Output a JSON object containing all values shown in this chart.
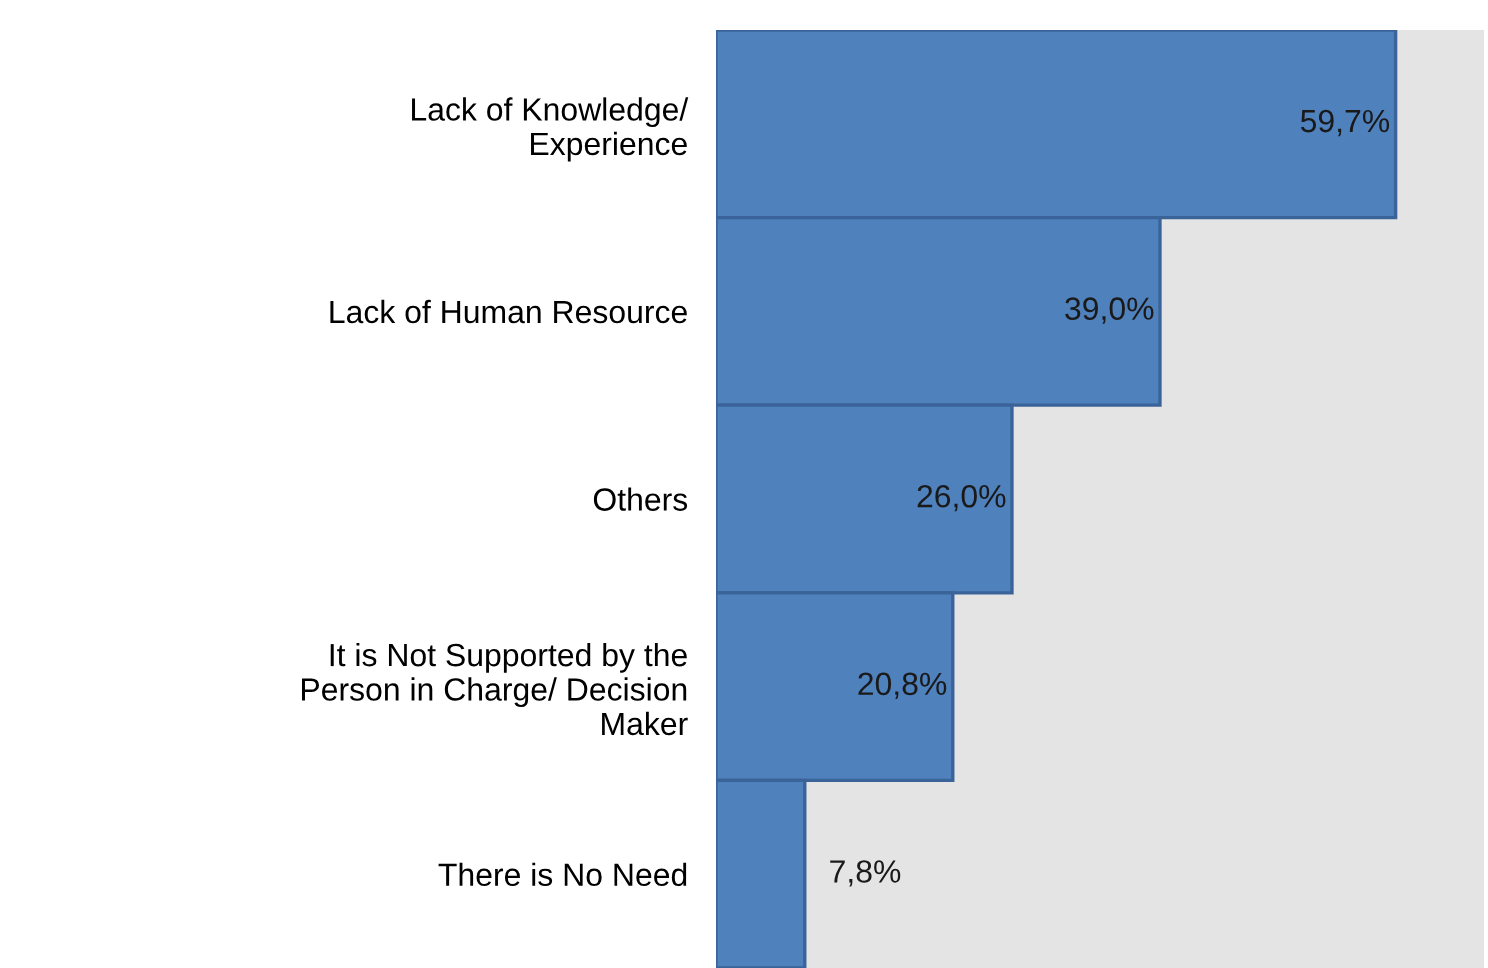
{
  "chart_data": {
    "type": "bar",
    "orientation": "horizontal",
    "categories": [
      "Lack of Knowledge/\nExperience",
      "Lack of Human Resource",
      "Others",
      "It is Not Supported by the\nPerson in Charge/ Decision\nMaker",
      "There is No Need"
    ],
    "values": [
      59.7,
      39.0,
      26.0,
      20.8,
      7.8
    ],
    "value_labels": [
      "59,7%",
      "39,0%",
      "26,0%",
      "20,8%",
      "7,8%"
    ],
    "color": "#4f81bd",
    "grid": false,
    "legend": false
  }
}
